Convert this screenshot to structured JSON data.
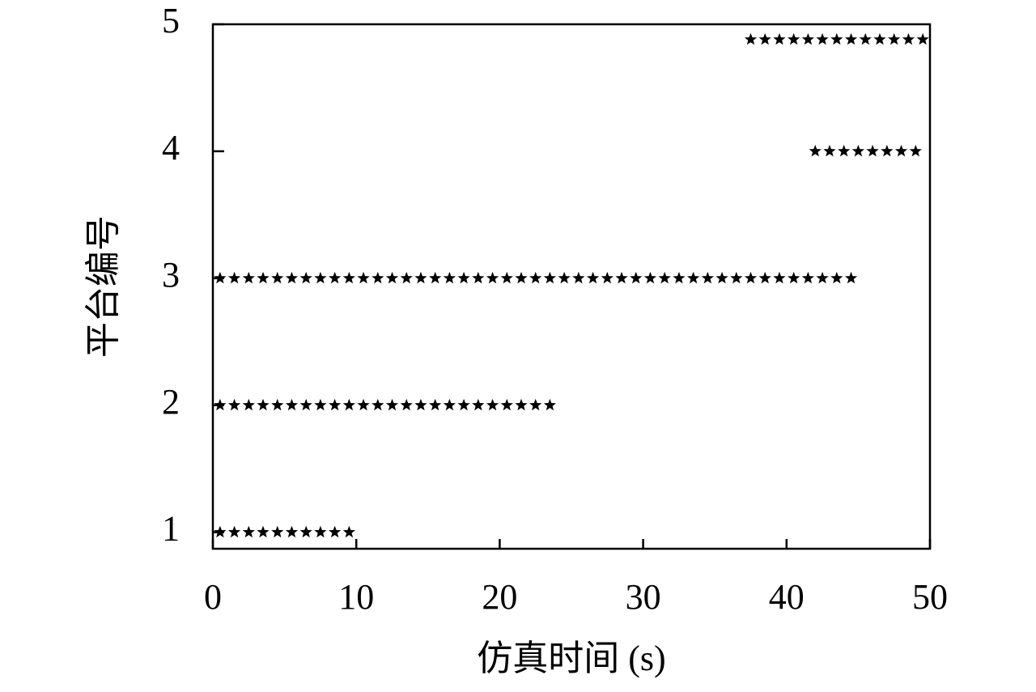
{
  "chart_data": {
    "type": "scatter",
    "xlabel": "仿真时间 (s)",
    "ylabel": "平台编号",
    "xlim": [
      0,
      50
    ],
    "xticks": [
      0,
      10,
      20,
      30,
      40,
      50
    ],
    "ylim": [
      0.87,
      5
    ],
    "yticks": [
      1,
      2,
      3,
      4,
      5
    ],
    "grid": false,
    "series": [
      {
        "color": "#000000",
        "x": [
          0.5,
          1.5,
          2.5,
          3.5,
          4.5,
          5.5,
          6.5,
          7.5,
          8.5,
          9.5
        ],
        "values": [
          1,
          1,
          1,
          1,
          1,
          1,
          1,
          1,
          1,
          1
        ]
      },
      {
        "color": "#000000",
        "x": [
          0.5,
          1.5,
          2.5,
          3.5,
          4.5,
          5.5,
          6.5,
          7.5,
          8.5,
          9.5,
          10.5,
          11.5,
          12.5,
          13.5,
          14.5,
          15.5,
          16.5,
          17.5,
          18.5,
          19.5,
          20.5,
          21.5,
          22.5,
          23.5
        ],
        "values": [
          2,
          2,
          2,
          2,
          2,
          2,
          2,
          2,
          2,
          2,
          2,
          2,
          2,
          2,
          2,
          2,
          2,
          2,
          2,
          2,
          2,
          2,
          2,
          2
        ]
      },
      {
        "color": "#000000",
        "x": [
          0.5,
          1.5,
          2.5,
          3.5,
          4.5,
          5.5,
          6.5,
          7.5,
          8.5,
          9.5,
          10.5,
          11.5,
          12.5,
          13.5,
          14.5,
          15.5,
          16.5,
          17.5,
          18.5,
          19.5,
          20.5,
          21.5,
          22.5,
          23.5,
          24.5,
          25.5,
          26.5,
          27.5,
          28.5,
          29.5,
          30.5,
          31.5,
          32.5,
          33.5,
          34.5,
          35.5,
          36.5,
          37.5,
          38.5,
          39.5,
          40.5,
          41.5,
          42.5,
          43.5,
          44.5
        ],
        "values": [
          3,
          3,
          3,
          3,
          3,
          3,
          3,
          3,
          3,
          3,
          3,
          3,
          3,
          3,
          3,
          3,
          3,
          3,
          3,
          3,
          3,
          3,
          3,
          3,
          3,
          3,
          3,
          3,
          3,
          3,
          3,
          3,
          3,
          3,
          3,
          3,
          3,
          3,
          3,
          3,
          3,
          3,
          3,
          3,
          3
        ]
      },
      {
        "color": "#000000",
        "x": [
          42,
          43,
          44,
          45,
          46,
          47,
          48,
          49
        ],
        "values": [
          4,
          4,
          4,
          4,
          4,
          4,
          4,
          4
        ]
      },
      {
        "color": "#000000",
        "x": [
          37.5,
          38.5,
          39.5,
          40.5,
          41.5,
          42.5,
          43.5,
          44.5,
          45.5,
          46.5,
          47.5,
          48.5,
          49.5
        ],
        "values": [
          4.88,
          4.88,
          4.88,
          4.88,
          4.88,
          4.88,
          4.88,
          4.88,
          4.88,
          4.88,
          4.88,
          4.88,
          4.88
        ]
      }
    ]
  }
}
